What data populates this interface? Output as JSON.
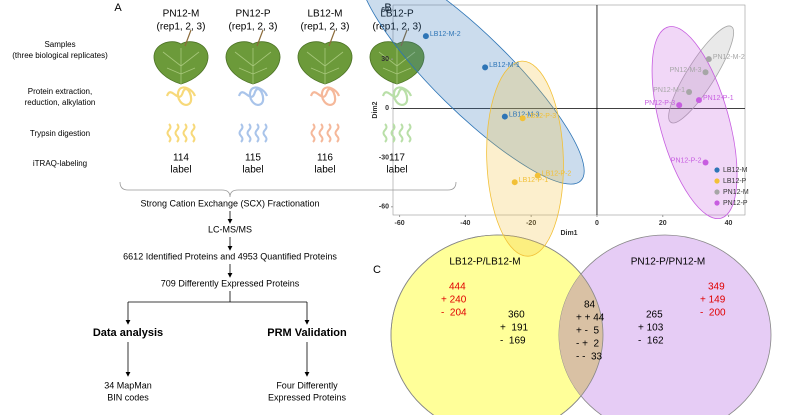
{
  "workflow": {
    "panel_label": "A",
    "groups": [
      {
        "name": "PN12-M",
        "reps": "(rep1, 2, 3)",
        "itraq": [
          "114",
          "label"
        ]
      },
      {
        "name": "PN12-P",
        "reps": "(rep1, 2, 3)",
        "itraq": [
          "115",
          "label"
        ]
      },
      {
        "name": "LB12-M",
        "reps": "(rep1, 2, 3)",
        "itraq": [
          "116",
          "label"
        ]
      },
      {
        "name": "LB12-P",
        "reps": "(rep1, 2, 3)",
        "itraq": [
          "117",
          "label"
        ]
      }
    ],
    "rows": [
      [
        "Samples",
        "(three biological replicates)"
      ],
      [
        "Protein extraction,",
        "reduction, alkylation"
      ],
      [
        "Trypsin digestion"
      ],
      [
        "iTRAQ-labeling"
      ]
    ],
    "flow": [
      "Strong Cation Exchange (SCX) Fractionation",
      "LC-MS/MS",
      "6612 Identified Proteins and 4953 Quantified Proteins",
      "709 Differently Expressed Proteins"
    ],
    "branches": [
      {
        "title": "Data analysis",
        "result": [
          "34 MapMan",
          "BIN codes"
        ]
      },
      {
        "title": "PRM Validation",
        "result": [
          "Four Differently",
          "Expressed Proteins"
        ]
      }
    ]
  },
  "chart_data": {
    "type": "scatter",
    "panel_label": "B",
    "xlabel": "Dim1",
    "ylabel": "Dim2",
    "xlim": [
      -62,
      45
    ],
    "ylim": [
      -65,
      63
    ],
    "xticks": [
      -60,
      -40,
      -20,
      0,
      20,
      40
    ],
    "yticks": [
      -60,
      -30,
      0,
      30,
      60
    ],
    "legend": "lower right",
    "series": [
      {
        "name": "LB12-M",
        "color": "#2e75b6",
        "labels": [
          "LB12-M-2",
          "LB12-M-1",
          "LB12-M-3"
        ],
        "x": [
          -52,
          -34,
          -28
        ],
        "values": [
          44,
          25,
          -5
        ]
      },
      {
        "name": "LB12-P",
        "color": "#f2c037",
        "labels": [
          "LB12-P-3",
          "LB12-P-2",
          "LB12-P-1"
        ],
        "x": [
          -22.6,
          -18,
          -25
        ],
        "values": [
          -6,
          -41,
          -45
        ]
      },
      {
        "name": "PN12-M",
        "color": "#a6a6a6",
        "labels": [
          "PN12-M-2",
          "PN12-M-3",
          "PN12-M-1"
        ],
        "x": [
          34,
          33,
          28
        ],
        "values": [
          30,
          22,
          10
        ]
      },
      {
        "name": "PN12-P",
        "color": "#c75ee0",
        "labels": [
          "PN12-P-1",
          "PN12-P-3",
          "PN12-P-2"
        ],
        "x": [
          31,
          25,
          33
        ],
        "values": [
          5,
          2,
          -33
        ]
      }
    ]
  },
  "venn": {
    "panel_label": "C",
    "sets": [
      "LB12-P/LB12-M",
      "PN12-P/PN12-M"
    ],
    "left_total": [
      "444",
      "+ 240",
      "-  204"
    ],
    "left_only": [
      "360",
      "+  191",
      "-  169"
    ],
    "overlap": [
      "84",
      "+ + 44",
      "+ -  5",
      "- +  2",
      "- -  33"
    ],
    "right_only": [
      "265",
      "+ 103",
      "-  162"
    ],
    "right_total": [
      "349",
      "+ 149",
      "-  200"
    ]
  }
}
